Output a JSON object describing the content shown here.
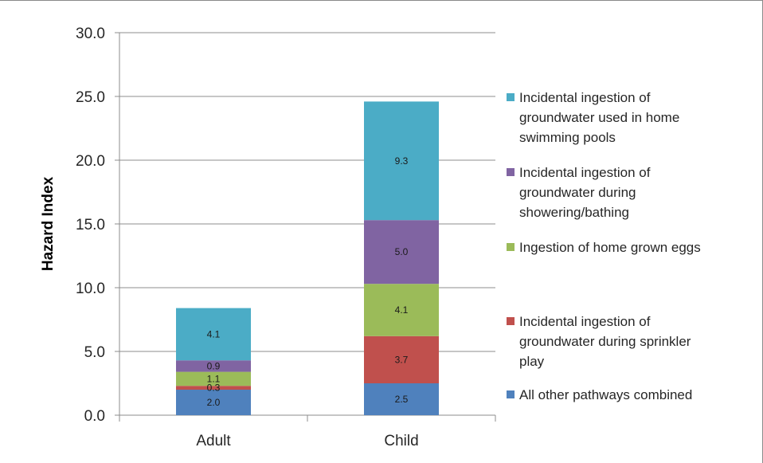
{
  "chart_data": {
    "type": "bar",
    "stacked": true,
    "title": "",
    "xlabel": "",
    "ylabel": "Hazard Index",
    "ylim": [
      0,
      30
    ],
    "yticks": [
      "0.0",
      "5.0",
      "10.0",
      "15.0",
      "20.0",
      "25.0",
      "30.0"
    ],
    "grid": true,
    "legend_position": "right",
    "categories": [
      "Adult",
      "Child"
    ],
    "series": [
      {
        "name": "All other pathways combined",
        "color": "#4f81bd",
        "values": [
          2.0,
          2.5
        ],
        "labels": [
          "2.0",
          "2.5"
        ]
      },
      {
        "name": "Incidental ingestion of groundwater during sprinkler play",
        "color": "#c0504d",
        "values": [
          0.3,
          3.7
        ],
        "labels": [
          "0.3",
          "3.7"
        ]
      },
      {
        "name": "Ingestion of home grown eggs",
        "color": "#9bbb59",
        "values": [
          1.1,
          4.1
        ],
        "labels": [
          "1.1",
          "4.1"
        ]
      },
      {
        "name": "Incidental ingestion of groundwater during showering/bathing",
        "color": "#8064a2",
        "values": [
          0.9,
          5.0
        ],
        "labels": [
          "0.9",
          "5.0"
        ]
      },
      {
        "name": "Incidental ingestion of groundwater used in home swimming pools",
        "color": "#4bacc6",
        "values": [
          4.1,
          9.3
        ],
        "labels": [
          "4.1",
          "9.3"
        ]
      }
    ]
  },
  "legend": {
    "items": [
      {
        "text": "Incidental ingestion of\ngroundwater used in home\nswimming pools",
        "color": "#4bacc6",
        "icon": "square-swatch"
      },
      {
        "text": "Incidental ingestion of\ngroundwater during\nshowering/bathing",
        "color": "#8064a2",
        "icon": "square-swatch"
      },
      {
        "text": "Ingestion of home grown eggs",
        "color": "#9bbb59",
        "icon": "square-swatch"
      },
      {
        "text": "Incidental ingestion of\ngroundwater during sprinkler\nplay",
        "color": "#c0504d",
        "icon": "square-swatch"
      },
      {
        "text": "All other pathways combined",
        "color": "#4f81bd",
        "icon": "square-swatch"
      }
    ]
  }
}
